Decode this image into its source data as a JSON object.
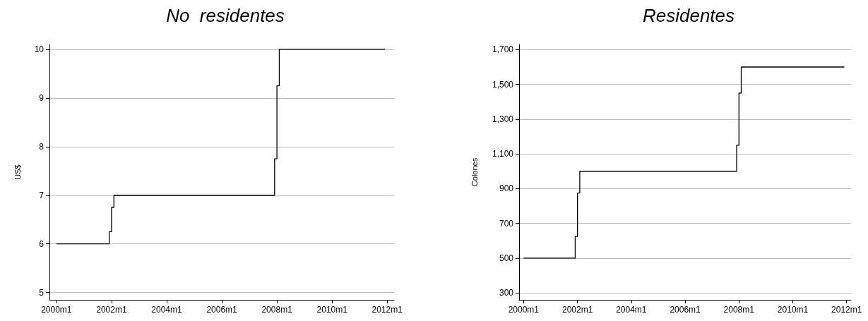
{
  "chart_data": [
    {
      "type": "step",
      "title": "No  residentes",
      "ylabel": "US$",
      "color": "#000000",
      "x": [
        "2000-01",
        "2001-12",
        "2002-01",
        "2002-02",
        "2007-12",
        "2008-01",
        "2008-02",
        "2011-12"
      ],
      "values": [
        6,
        6.25,
        6.75,
        7,
        7.75,
        9.25,
        10,
        10
      ],
      "xlim": [
        "1999-10",
        "2012-04"
      ],
      "xticks": [
        {
          "value": "2000-01",
          "label": "2000m1"
        },
        {
          "value": "2002-01",
          "label": "2002m1"
        },
        {
          "value": "2004-01",
          "label": "2004m1"
        },
        {
          "value": "2006-01",
          "label": "2006m1"
        },
        {
          "value": "2008-01",
          "label": "2008m1"
        },
        {
          "value": "2010-01",
          "label": "2010m1"
        },
        {
          "value": "2012-01",
          "label": "2012m1"
        }
      ],
      "ylim": [
        4.85,
        10.1
      ],
      "yticks": [
        5,
        6,
        7,
        8,
        9,
        10
      ],
      "grid": "y",
      "marker": "none",
      "line_style": "solid"
    },
    {
      "type": "step",
      "title": "Residentes",
      "ylabel": "Colones",
      "color": "#000000",
      "x": [
        "2000-01",
        "2001-12",
        "2002-01",
        "2002-02",
        "2007-12",
        "2008-01",
        "2008-02",
        "2011-12"
      ],
      "values": [
        500,
        625,
        875,
        1000,
        1150,
        1450,
        1600,
        1600
      ],
      "xlim": [
        "1999-11",
        "2012-03"
      ],
      "xticks": [
        {
          "value": "2000-01",
          "label": "2000m1"
        },
        {
          "value": "2002-01",
          "label": "2002m1"
        },
        {
          "value": "2004-01",
          "label": "2004m1"
        },
        {
          "value": "2006-01",
          "label": "2006m1"
        },
        {
          "value": "2008-01",
          "label": "2008m1"
        },
        {
          "value": "2010-01",
          "label": "2010m1"
        },
        {
          "value": "2012-01",
          "label": "2012m1"
        }
      ],
      "ylim": [
        260,
        1730
      ],
      "yticks": [
        300,
        500,
        700,
        900,
        {
          "value": 1100,
          "label": "1,100"
        },
        {
          "value": 1300,
          "label": "1,300"
        },
        {
          "value": 1500,
          "label": "1,500"
        },
        {
          "value": 1700,
          "label": "1,700"
        }
      ],
      "grid": "y",
      "marker": "none",
      "line_style": "solid"
    }
  ]
}
